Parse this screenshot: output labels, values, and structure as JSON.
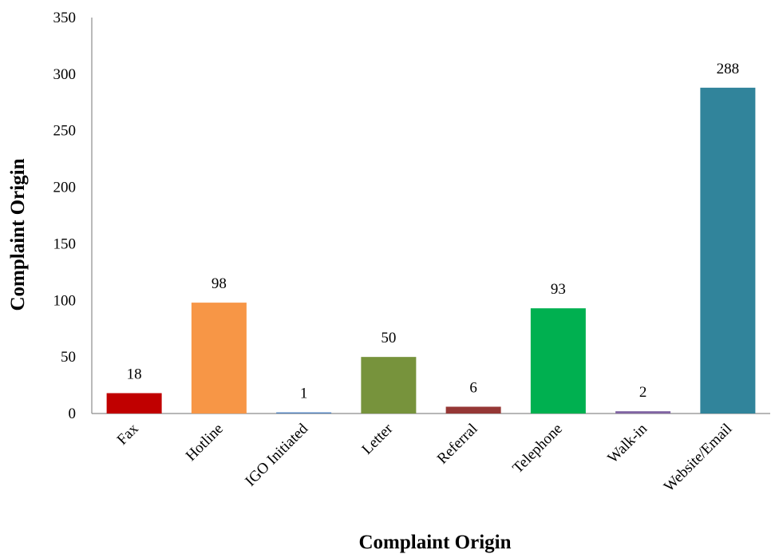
{
  "chart_data": {
    "type": "bar",
    "title": "",
    "xlabel": "Complaint Origin",
    "ylabel": "Complaint Origin",
    "ylim": [
      0,
      350
    ],
    "yticks": [
      0,
      50,
      100,
      150,
      200,
      250,
      300,
      350
    ],
    "grid": false,
    "legend": "none",
    "categories": [
      "Fax",
      "Hotline",
      "IGO Initiated",
      "Letter",
      "Referral",
      "Telephone",
      "Walk-in",
      "Website/Email"
    ],
    "values": [
      18,
      98,
      1,
      50,
      6,
      93,
      2,
      288
    ],
    "data_labels": [
      "18",
      "98",
      "1",
      "50",
      "6",
      "93",
      "2",
      "288"
    ],
    "colors": [
      "#c00000",
      "#f79646",
      "#4f81bd",
      "#77933c",
      "#953735",
      "#00b050",
      "#8064a2",
      "#31849b"
    ]
  }
}
